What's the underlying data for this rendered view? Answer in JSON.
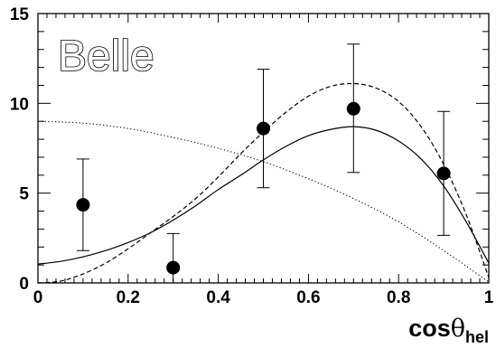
{
  "chart_data": {
    "type": "scatter",
    "logo_text": "Belle",
    "xlabel": {
      "main": "cos",
      "symbol": "θ",
      "subscript": "hel"
    },
    "ylabel": "",
    "xlim": [
      0,
      1
    ],
    "ylim": [
      0,
      15
    ],
    "x_ticks": [
      "0",
      "0.2",
      "0.4",
      "0.6",
      "0.8",
      "1"
    ],
    "y_ticks": [
      "0",
      "5",
      "10",
      "15"
    ],
    "grid": false,
    "series": [
      {
        "kind": "points_with_errors",
        "x": [
          0.1,
          0.3,
          0.5,
          0.7,
          0.9
        ],
        "y": [
          4.35,
          0.85,
          8.6,
          9.7,
          6.1
        ],
        "err_high": [
          6.9,
          2.75,
          11.9,
          13.3,
          9.55
        ],
        "err_low": [
          1.8,
          0,
          5.3,
          6.15,
          2.65
        ]
      },
      {
        "kind": "curve",
        "style": "solid",
        "x": [
          0,
          0.05,
          0.1,
          0.15,
          0.2,
          0.25,
          0.3,
          0.35,
          0.4,
          0.45,
          0.5,
          0.55,
          0.6,
          0.65,
          0.7,
          0.75,
          0.8,
          0.85,
          0.9,
          0.95,
          1.0
        ],
        "y": [
          1.05,
          1.2,
          1.45,
          1.8,
          2.25,
          2.8,
          3.5,
          4.3,
          5.2,
          6.0,
          6.85,
          7.6,
          8.2,
          8.55,
          8.7,
          8.5,
          7.9,
          6.9,
          5.4,
          3.4,
          1.1
        ]
      },
      {
        "kind": "curve",
        "style": "dashed",
        "x": [
          0,
          0.05,
          0.1,
          0.15,
          0.2,
          0.25,
          0.3,
          0.35,
          0.4,
          0.45,
          0.5,
          0.55,
          0.6,
          0.65,
          0.7,
          0.75,
          0.8,
          0.85,
          0.9,
          0.95,
          1.0
        ],
        "y": [
          0,
          0.1,
          0.5,
          1.1,
          1.9,
          2.8,
          3.7,
          4.7,
          5.9,
          7.2,
          8.4,
          9.5,
          10.4,
          10.95,
          11.1,
          10.85,
          10.1,
          8.7,
          6.6,
          3.8,
          0.3
        ]
      },
      {
        "kind": "curve",
        "style": "dotted",
        "x": [
          0,
          0.1,
          0.2,
          0.3,
          0.4,
          0.5,
          0.6,
          0.7,
          0.8,
          0.9,
          1.0
        ],
        "y": [
          9.0,
          8.9,
          8.6,
          8.1,
          7.5,
          6.75,
          5.8,
          4.7,
          3.4,
          1.8,
          0.05
        ]
      }
    ],
    "colors": {
      "ink": "#000000",
      "background": "#ffffff"
    }
  }
}
